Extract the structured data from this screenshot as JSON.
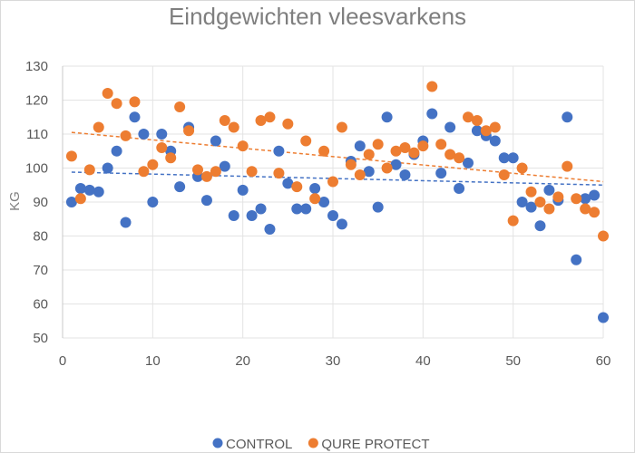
{
  "chart_data": {
    "type": "scatter",
    "title": "Eindgewichten vleesvarkens",
    "xlabel": "",
    "ylabel": "KG",
    "xlim": [
      0,
      60
    ],
    "ylim": [
      50,
      130
    ],
    "xticks": [
      0,
      10,
      20,
      30,
      40,
      50,
      60
    ],
    "yticks": [
      50,
      60,
      70,
      80,
      90,
      100,
      110,
      120,
      130
    ],
    "grid": true,
    "legend_position": "bottom",
    "x": [
      1,
      2,
      3,
      4,
      5,
      6,
      7,
      8,
      9,
      10,
      11,
      12,
      13,
      14,
      15,
      16,
      17,
      18,
      19,
      20,
      21,
      22,
      23,
      24,
      25,
      26,
      27,
      28,
      29,
      30,
      31,
      32,
      33,
      34,
      35,
      36,
      37,
      38,
      39,
      40,
      41,
      42,
      43,
      44,
      45,
      46,
      47,
      48,
      49,
      50,
      51,
      52,
      53,
      54,
      55,
      56,
      57,
      58,
      59,
      60
    ],
    "series": [
      {
        "name": "CONTROL",
        "color": "#4472C4",
        "values": [
          90,
          94,
          93.5,
          93,
          100,
          105,
          84,
          115,
          110,
          90,
          110,
          105,
          94.5,
          112,
          97.5,
          90.5,
          108,
          100.5,
          86,
          93.5,
          86,
          88,
          82,
          105,
          95.5,
          88,
          88,
          94,
          90,
          86,
          83.5,
          102,
          106.5,
          99,
          88.5,
          115,
          101,
          98,
          104,
          108,
          116,
          98.5,
          112,
          94,
          101.5,
          111,
          109.5,
          108,
          103,
          103,
          90,
          88.5,
          83,
          93.5,
          90.5,
          115,
          73,
          91,
          92,
          56
        ],
        "trendline": {
          "type": "linear",
          "start": [
            1,
            98.8
          ],
          "end": [
            60,
            95
          ]
        }
      },
      {
        "name": "QURE PROTECT",
        "color": "#ED7D31",
        "values": [
          103.5,
          91,
          99.5,
          112,
          122,
          119,
          109.5,
          119.5,
          99,
          101,
          106,
          103,
          118,
          111,
          99.5,
          97.5,
          99,
          114,
          112,
          106.5,
          99,
          114,
          115,
          98.5,
          113,
          94.5,
          108,
          91,
          105,
          96,
          112,
          101,
          98,
          104,
          107,
          100,
          105,
          106,
          104.5,
          106.5,
          124,
          107,
          104,
          103,
          115,
          114,
          111,
          112,
          98,
          84.5,
          100,
          93,
          90,
          88,
          91.5,
          100.5,
          91,
          88,
          87,
          80
        ],
        "trendline": {
          "type": "linear",
          "start": [
            1,
            110.5
          ],
          "end": [
            60,
            96
          ]
        }
      }
    ]
  }
}
